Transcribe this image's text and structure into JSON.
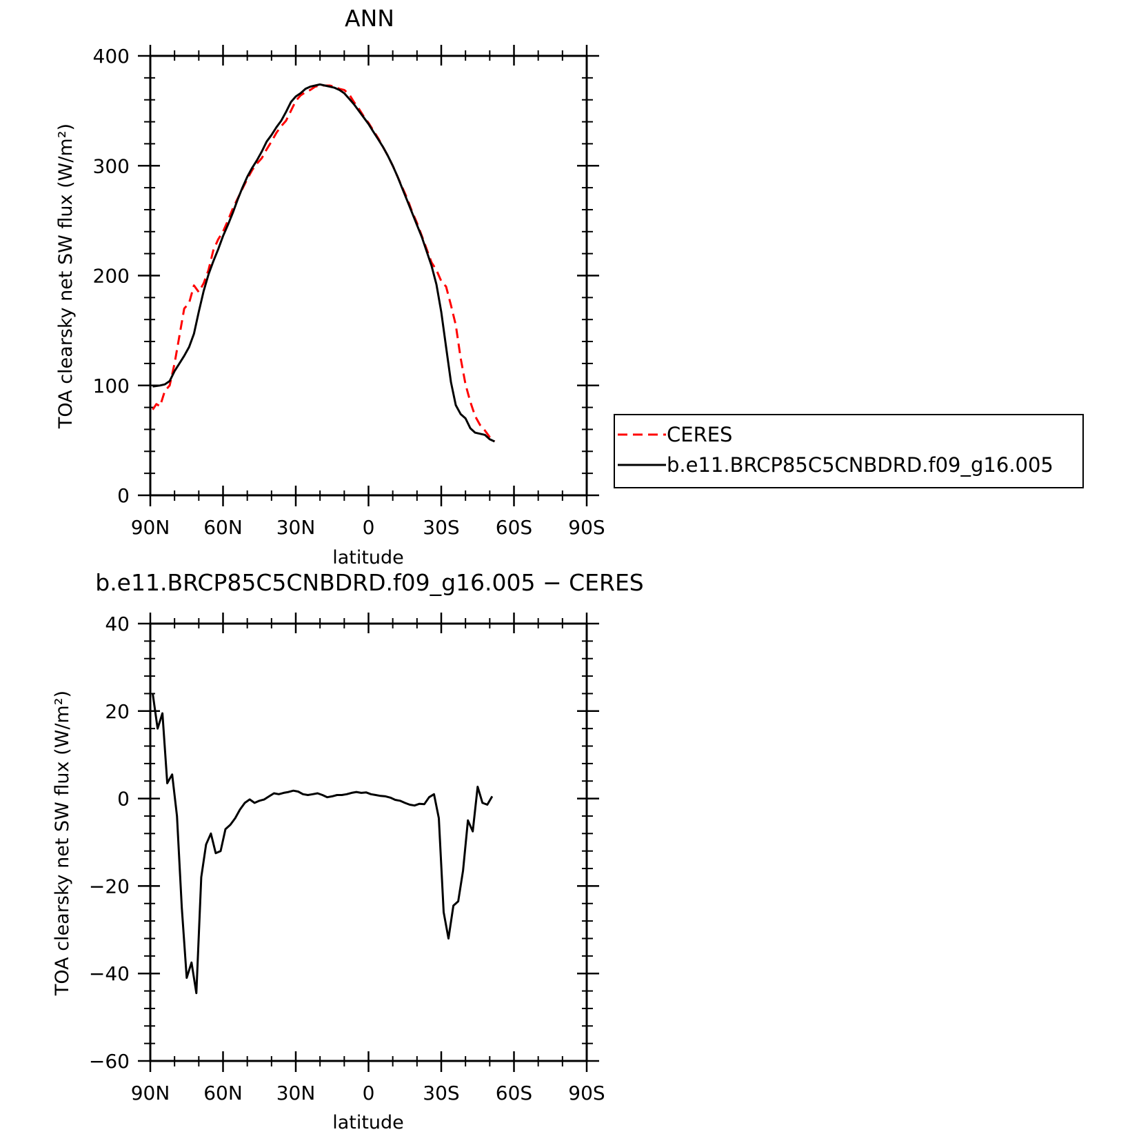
{
  "chart_data": [
    {
      "type": "line",
      "title": "ANN",
      "xlabel": "latitude",
      "ylabel": "TOA clearsky net SW flux (W/m²)",
      "ylim": [
        0,
        400
      ],
      "xlim": [
        90,
        -90
      ],
      "xticks": [
        {
          "value": 90,
          "label": "90N"
        },
        {
          "value": 60,
          "label": "60N"
        },
        {
          "value": 30,
          "label": "30N"
        },
        {
          "value": 0,
          "label": "0"
        },
        {
          "value": -30,
          "label": "30S"
        },
        {
          "value": -60,
          "label": "60S"
        },
        {
          "value": -90,
          "label": "90S"
        }
      ],
      "yticks": [
        {
          "value": 400,
          "label": "400"
        },
        {
          "value": 300,
          "label": "300"
        },
        {
          "value": 200,
          "label": "200"
        },
        {
          "value": 100,
          "label": "100"
        },
        {
          "value": 0,
          "label": "0"
        }
      ],
      "legend": {
        "position": "right"
      },
      "series": [
        {
          "name": "CERES",
          "color": "#ff0000",
          "dash": "dashed",
          "points": [
            [
              89,
              78
            ],
            [
              87.5,
              83
            ],
            [
              86,
              81
            ],
            [
              84,
              95
            ],
            [
              82,
              100
            ],
            [
              80,
              120
            ],
            [
              78,
              145
            ],
            [
              76,
              170
            ],
            [
              74,
              175
            ],
            [
              72,
              191
            ],
            [
              70,
              185
            ],
            [
              68,
              193
            ],
            [
              66,
              205
            ],
            [
              64,
              223
            ],
            [
              62,
              233
            ],
            [
              60,
              240
            ],
            [
              58,
              250
            ],
            [
              56,
              261
            ],
            [
              54,
              270
            ],
            [
              52,
              279
            ],
            [
              50,
              288
            ],
            [
              48,
              296
            ],
            [
              46,
              302
            ],
            [
              44,
              307
            ],
            [
              42,
              315
            ],
            [
              40,
              322
            ],
            [
              38,
              330
            ],
            [
              36,
              336
            ],
            [
              34,
              341
            ],
            [
              32,
              350
            ],
            [
              30,
              359
            ],
            [
              28,
              364
            ],
            [
              26,
              367
            ],
            [
              24,
              369
            ],
            [
              22,
              372
            ],
            [
              20,
              373
            ],
            [
              18,
              373
            ],
            [
              16,
              373
            ],
            [
              14,
              372
            ],
            [
              12,
              370
            ],
            [
              10,
              369
            ],
            [
              8,
              365
            ],
            [
              6,
              358
            ],
            [
              4,
              352
            ],
            [
              2,
              345
            ],
            [
              0,
              339
            ],
            [
              -2,
              332
            ],
            [
              -4,
              325
            ],
            [
              -6,
              317
            ],
            [
              -8,
              309
            ],
            [
              -10,
              300
            ],
            [
              -12,
              290
            ],
            [
              -14,
              280
            ],
            [
              -16,
              270
            ],
            [
              -18,
              258
            ],
            [
              -20,
              248
            ],
            [
              -22,
              236
            ],
            [
              -24,
              224
            ],
            [
              -26,
              212
            ],
            [
              -28,
              205
            ],
            [
              -30,
              195
            ],
            [
              -32,
              190
            ],
            [
              -34,
              173
            ],
            [
              -36,
              155
            ],
            [
              -38,
              125
            ],
            [
              -40,
              101
            ],
            [
              -42,
              85
            ],
            [
              -44,
              72
            ],
            [
              -46,
              64
            ],
            [
              -48,
              59
            ],
            [
              -50,
              53
            ],
            [
              -52,
              49
            ]
          ]
        },
        {
          "name": "b.e11.BRCP85C5CNBDRD.f09_g16.005",
          "color": "#000000",
          "dash": "solid",
          "points": [
            [
              89,
              99
            ],
            [
              86,
              100
            ],
            [
              84,
              101
            ],
            [
              82,
              104
            ],
            [
              80,
              113
            ],
            [
              78,
              120
            ],
            [
              76,
              127
            ],
            [
              74,
              135
            ],
            [
              72,
              147
            ],
            [
              70,
              167
            ],
            [
              68,
              186
            ],
            [
              66,
              201
            ],
            [
              64,
              213
            ],
            [
              62,
              224
            ],
            [
              60,
              236
            ],
            [
              58,
              246
            ],
            [
              56,
              257
            ],
            [
              54,
              269
            ],
            [
              52,
              280
            ],
            [
              50,
              290
            ],
            [
              48,
              298
            ],
            [
              46,
              305
            ],
            [
              44,
              313
            ],
            [
              42,
              322
            ],
            [
              40,
              328
            ],
            [
              38,
              335
            ],
            [
              36,
              341
            ],
            [
              34,
              349
            ],
            [
              32,
              358
            ],
            [
              30,
              363
            ],
            [
              28,
              366
            ],
            [
              26,
              370
            ],
            [
              24,
              372
            ],
            [
              22,
              373
            ],
            [
              20,
              374
            ],
            [
              18,
              373
            ],
            [
              16,
              372
            ],
            [
              14,
              371
            ],
            [
              12,
              369
            ],
            [
              10,
              366
            ],
            [
              8,
              361
            ],
            [
              6,
              356
            ],
            [
              4,
              350
            ],
            [
              2,
              344
            ],
            [
              0,
              338
            ],
            [
              -2,
              331
            ],
            [
              -4,
              324
            ],
            [
              -6,
              317
            ],
            [
              -8,
              309
            ],
            [
              -10,
              300
            ],
            [
              -12,
              290
            ],
            [
              -14,
              279
            ],
            [
              -16,
              268
            ],
            [
              -18,
              257
            ],
            [
              -20,
              246
            ],
            [
              -22,
              235
            ],
            [
              -24,
              222
            ],
            [
              -26,
              209
            ],
            [
              -28,
              192
            ],
            [
              -30,
              167
            ],
            [
              -32,
              135
            ],
            [
              -34,
              103
            ],
            [
              -36,
              82
            ],
            [
              -38,
              74
            ],
            [
              -40,
              70
            ],
            [
              -42,
              61
            ],
            [
              -44,
              57
            ],
            [
              -46,
              56
            ],
            [
              -48,
              55
            ],
            [
              -50,
              51
            ],
            [
              -52,
              49
            ]
          ]
        }
      ]
    },
    {
      "type": "line",
      "title": "b.e11.BRCP85C5CNBDRD.f09_g16.005 − CERES",
      "xlabel": "latitude",
      "ylabel": "TOA clearsky net SW flux (W/m²)",
      "ylim": [
        -60,
        40
      ],
      "xlim": [
        90,
        -90
      ],
      "xticks": [
        {
          "value": 90,
          "label": "90N"
        },
        {
          "value": 60,
          "label": "60N"
        },
        {
          "value": 30,
          "label": "30N"
        },
        {
          "value": 0,
          "label": "0"
        },
        {
          "value": -30,
          "label": "30S"
        },
        {
          "value": -60,
          "label": "60S"
        },
        {
          "value": -90,
          "label": "90S"
        }
      ],
      "yticks": [
        {
          "value": 40,
          "label": "40"
        },
        {
          "value": 20,
          "label": "20"
        },
        {
          "value": 0,
          "label": "0"
        },
        {
          "value": -20,
          "label": "−20"
        },
        {
          "value": -40,
          "label": "−40"
        },
        {
          "value": -60,
          "label": "−60"
        }
      ],
      "series": [
        {
          "color": "#000000",
          "dash": "solid",
          "points": [
            [
              89,
              24
            ],
            [
              87,
              16
            ],
            [
              85,
              19.5
            ],
            [
              83,
              3.5
            ],
            [
              81,
              5.5
            ],
            [
              79,
              -4
            ],
            [
              77,
              -25
            ],
            [
              75,
              -41
            ],
            [
              73,
              -37.5
            ],
            [
              71,
              -44.5
            ],
            [
              69,
              -18
            ],
            [
              67,
              -10.5
            ],
            [
              65,
              -8
            ],
            [
              63,
              -12.5
            ],
            [
              61,
              -12
            ],
            [
              59,
              -7
            ],
            [
              57,
              -6
            ],
            [
              55,
              -4.5
            ],
            [
              53,
              -2.5
            ],
            [
              51,
              -1
            ],
            [
              49,
              -0.2
            ],
            [
              47,
              -1
            ],
            [
              45,
              -0.5
            ],
            [
              43,
              -0.2
            ],
            [
              41,
              0.5
            ],
            [
              39,
              1.2
            ],
            [
              37,
              1
            ],
            [
              35,
              1.3
            ],
            [
              33,
              1.5
            ],
            [
              31,
              1.8
            ],
            [
              29,
              1.6
            ],
            [
              27,
              1
            ],
            [
              25,
              0.8
            ],
            [
              23,
              1
            ],
            [
              21,
              1.2
            ],
            [
              19,
              0.8
            ],
            [
              17,
              0.3
            ],
            [
              15,
              0.5
            ],
            [
              13,
              0.8
            ],
            [
              11,
              0.8
            ],
            [
              9,
              1
            ],
            [
              7,
              1.3
            ],
            [
              5,
              1.5
            ],
            [
              3,
              1.3
            ],
            [
              1,
              1.4
            ],
            [
              -1,
              1
            ],
            [
              -3,
              0.8
            ],
            [
              -5,
              0.6
            ],
            [
              -7,
              0.5
            ],
            [
              -9,
              0.2
            ],
            [
              -11,
              -0.3
            ],
            [
              -13,
              -0.5
            ],
            [
              -15,
              -1
            ],
            [
              -17,
              -1.4
            ],
            [
              -19,
              -1.6
            ],
            [
              -21,
              -1.2
            ],
            [
              -23,
              -1.3
            ],
            [
              -25,
              0.3
            ],
            [
              -27,
              1
            ],
            [
              -29,
              -4.5
            ],
            [
              -31,
              -26
            ],
            [
              -33,
              -32
            ],
            [
              -35,
              -24.5
            ],
            [
              -37,
              -23.5
            ],
            [
              -39,
              -16.5
            ],
            [
              -41,
              -5
            ],
            [
              -43,
              -7.5
            ],
            [
              -45,
              2.7
            ],
            [
              -47,
              -1
            ],
            [
              -49,
              -1.4
            ],
            [
              -51,
              0.5
            ]
          ]
        }
      ]
    }
  ]
}
